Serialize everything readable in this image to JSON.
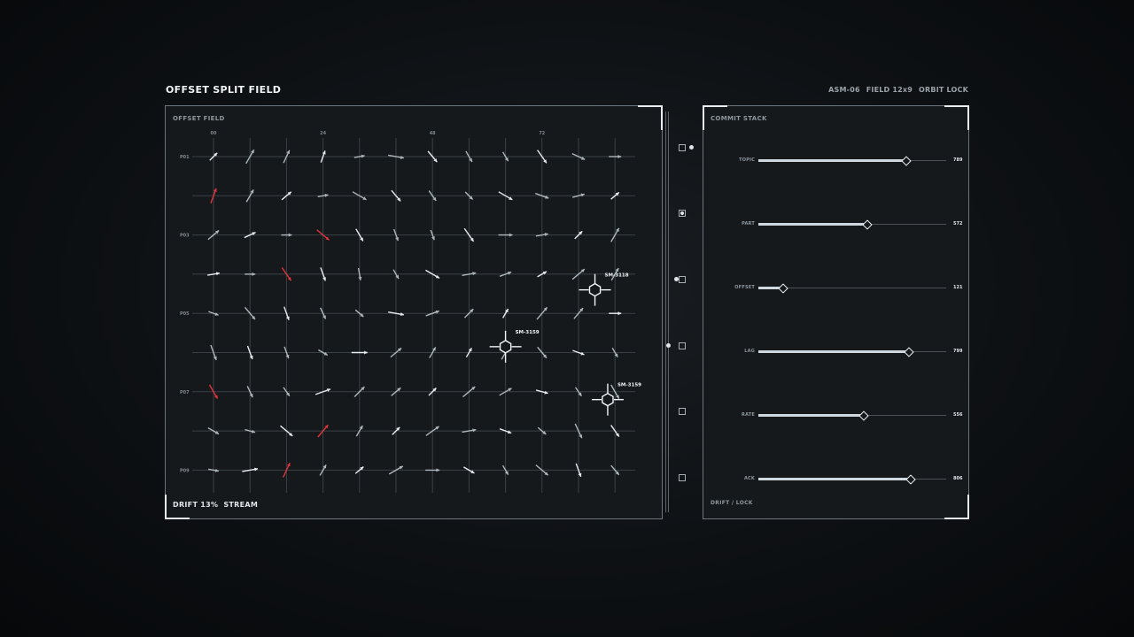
{
  "header": {
    "title": "OFFSET SPLIT FIELD",
    "meta": [
      "ASM-06",
      "FIELD 12x9",
      "ORBIT LOCK"
    ]
  },
  "field": {
    "label": "OFFSET FIELD",
    "footer": [
      "DRIFT 13%",
      "STREAM"
    ],
    "col_ticks": [
      "00",
      "24",
      "48",
      "72"
    ],
    "row_ticks": [
      "P01",
      "P03",
      "P05",
      "P07",
      "P09"
    ],
    "cols": 12,
    "rows": 9,
    "angles": [
      [
        45,
        60,
        65,
        70,
        10,
        -10,
        -50,
        -60,
        -60,
        -55,
        -25,
        0
      ],
      [
        70,
        60,
        40,
        10,
        -30,
        -50,
        -55,
        -45,
        -30,
        -20,
        15,
        40
      ],
      [
        40,
        25,
        0,
        -40,
        -60,
        -70,
        -70,
        -55,
        0,
        10,
        45,
        60
      ],
      [
        10,
        0,
        -55,
        -70,
        -80,
        -60,
        -30,
        10,
        20,
        30,
        40,
        60
      ],
      [
        -20,
        -50,
        -70,
        -65,
        -40,
        -10,
        20,
        45,
        60,
        50,
        50,
        0
      ],
      [
        -70,
        -70,
        -70,
        -30,
        0,
        40,
        60,
        60,
        60,
        -50,
        -20,
        -60
      ],
      [
        -60,
        -65,
        -55,
        20,
        45,
        40,
        45,
        40,
        30,
        -15,
        -55,
        -60
      ],
      [
        -30,
        -15,
        -40,
        50,
        60,
        45,
        35,
        10,
        -20,
        -40,
        -65,
        -55
      ],
      [
        -10,
        10,
        65,
        60,
        40,
        30,
        0,
        -30,
        -60,
        -40,
        -70,
        -50
      ]
    ],
    "alerts": [
      [
        1,
        0
      ],
      [
        2,
        3
      ],
      [
        3,
        2
      ],
      [
        6,
        0
      ],
      [
        7,
        3
      ],
      [
        8,
        2
      ]
    ],
    "markers": [
      {
        "label": "SM-3118",
        "col": 10.45,
        "row": 3.4
      },
      {
        "label": "SM-3159",
        "col": 8.0,
        "row": 4.85
      },
      {
        "label": "SM-3159",
        "col": 10.8,
        "row": 6.2
      }
    ]
  },
  "rail": {
    "boxes": [
      {
        "active": false,
        "dot": "right"
      },
      {
        "active": true,
        "dot": "none"
      },
      {
        "active": false,
        "dot": "left-inner"
      },
      {
        "active": false,
        "dot": "left"
      },
      {
        "active": false,
        "dot": "none"
      },
      {
        "active": false,
        "dot": "none"
      }
    ]
  },
  "commit": {
    "label": "COMMIT STACK",
    "footer": "DRIFT / LOCK",
    "sliders": [
      {
        "name": "TOPIC",
        "value": "789",
        "level": 0.79
      },
      {
        "name": "PART",
        "value": "572",
        "level": 0.58
      },
      {
        "name": "OFFSET",
        "value": "121",
        "level": 0.13
      },
      {
        "name": "LAG",
        "value": "799",
        "level": 0.8
      },
      {
        "name": "RATE",
        "value": "556",
        "level": 0.56
      },
      {
        "name": "ACK",
        "value": "806",
        "level": 0.81
      }
    ]
  }
}
